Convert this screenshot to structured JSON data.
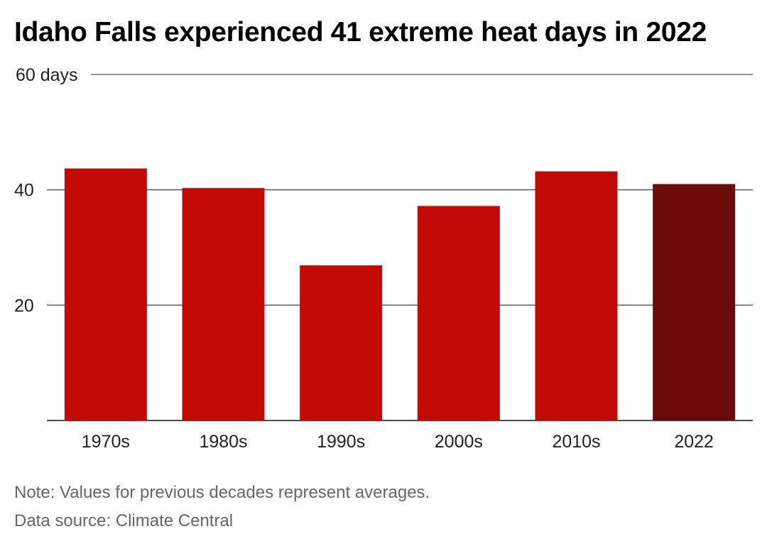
{
  "title": "Idaho Falls experienced 41 extreme heat days in 2022",
  "note": "Note: Values for previous decades represent averages.",
  "source": "Data source: Climate Central",
  "colors": {
    "decade_bar": "#c40a04",
    "highlight_bar": "#6b0a0b",
    "grid": "#555555",
    "axis": "#333333",
    "text": "#222222"
  },
  "chart_data": {
    "type": "bar",
    "categories": [
      "1970s",
      "1980s",
      "1990s",
      "2000s",
      "2010s",
      "2022"
    ],
    "values": [
      43.7,
      40.3,
      26.9,
      37.2,
      43.2,
      41
    ],
    "highlight_index": 5,
    "ylim": [
      0,
      60
    ],
    "yticks": [
      20,
      40,
      60
    ],
    "ytick_labels": [
      "20",
      "40",
      "60 days"
    ],
    "xlabel": "",
    "ylabel": "",
    "grid": true
  }
}
